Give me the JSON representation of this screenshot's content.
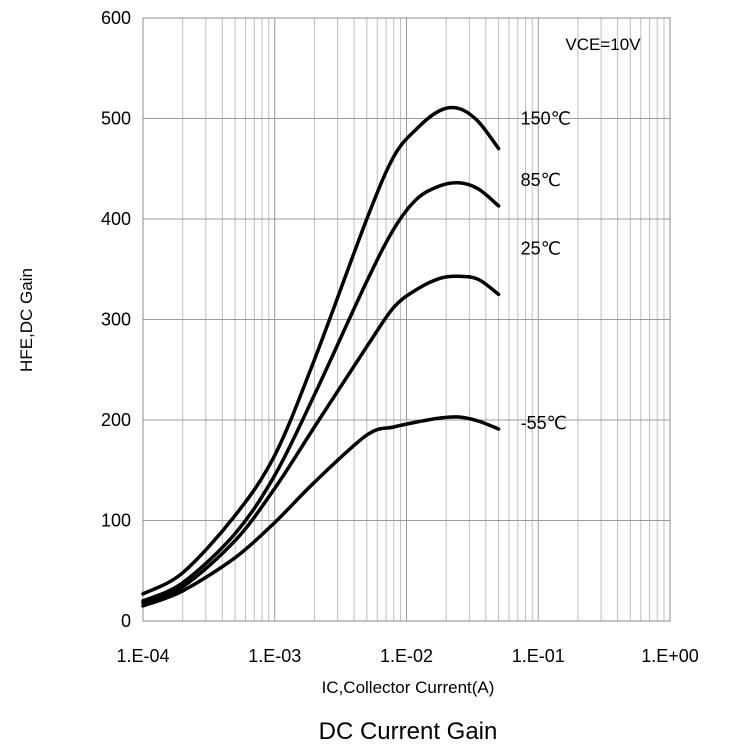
{
  "caption": "DC Current Gain",
  "chart_data": {
    "type": "line",
    "title": "",
    "xlabel": "IC,Collector Current(A)",
    "ylabel": "HFE,DC Gain",
    "x_scale": "log",
    "xlim": [
      0.0001,
      1
    ],
    "ylim": [
      0,
      600
    ],
    "x_tick_labels": [
      "1.E-04",
      "1.E-03",
      "1.E-02",
      "1.E-01",
      "1.E+00"
    ],
    "y_tick_labels": [
      "0",
      "100",
      "200",
      "300",
      "400",
      "500",
      "600"
    ],
    "grid": true,
    "legend": "none",
    "annotation": "VCE=10V",
    "colors": {
      "line": "#000000",
      "grid": "#bfbfbf",
      "background": "#ffffff"
    },
    "series": [
      {
        "name": "150℃",
        "x": [
          0.0001,
          0.0002,
          0.0005,
          0.001,
          0.002,
          0.005,
          0.008,
          0.012,
          0.018,
          0.025,
          0.035,
          0.05
        ],
        "y": [
          27,
          48,
          105,
          165,
          260,
          400,
          462,
          490,
          508,
          510,
          497,
          470
        ]
      },
      {
        "name": "85℃",
        "x": [
          0.0001,
          0.0002,
          0.0005,
          0.001,
          0.002,
          0.005,
          0.008,
          0.012,
          0.018,
          0.025,
          0.035,
          0.05
        ],
        "y": [
          20,
          38,
          87,
          145,
          225,
          338,
          390,
          420,
          433,
          436,
          430,
          413
        ]
      },
      {
        "name": "25℃",
        "x": [
          0.0001,
          0.0002,
          0.0005,
          0.001,
          0.002,
          0.005,
          0.008,
          0.012,
          0.018,
          0.025,
          0.035,
          0.05
        ],
        "y": [
          18,
          34,
          80,
          132,
          193,
          273,
          312,
          330,
          341,
          343,
          340,
          325
        ]
      },
      {
        "name": "-55℃",
        "x": [
          0.0001,
          0.0002,
          0.0005,
          0.001,
          0.002,
          0.005,
          0.008,
          0.012,
          0.018,
          0.025,
          0.035,
          0.05
        ],
        "y": [
          15,
          30,
          63,
          98,
          138,
          185,
          193,
          198,
          202,
          203,
          199,
          191
        ]
      }
    ]
  }
}
